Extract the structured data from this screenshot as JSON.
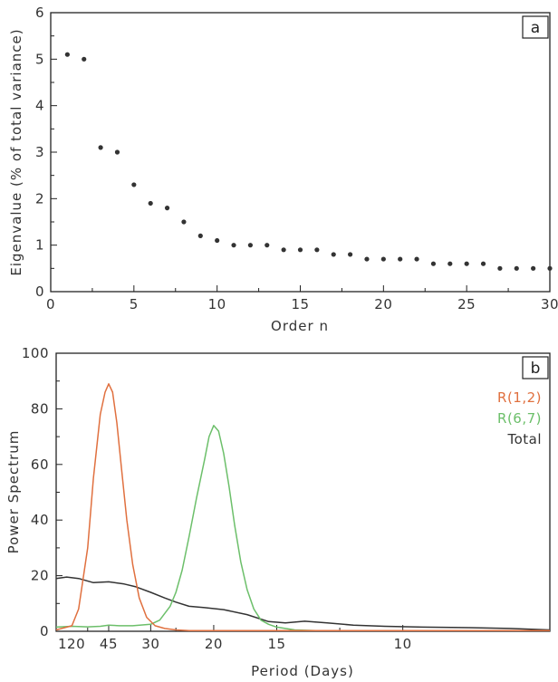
{
  "chart_data": [
    {
      "type": "scatter",
      "panel_label": "a",
      "xlabel": "Order n",
      "ylabel": "Eigenvalue (% of total variance)",
      "xlim": [
        0,
        30
      ],
      "ylim": [
        0,
        6
      ],
      "xticks": [
        0,
        5,
        10,
        15,
        20,
        25,
        30
      ],
      "yticks": [
        0,
        1,
        2,
        3,
        4,
        5,
        6
      ],
      "grid": false,
      "color": "#333333",
      "x": [
        1,
        2,
        3,
        4,
        5,
        6,
        7,
        8,
        9,
        10,
        11,
        12,
        13,
        14,
        15,
        16,
        17,
        18,
        19,
        20,
        21,
        22,
        23,
        24,
        25,
        26,
        27,
        28,
        29,
        30
      ],
      "y": [
        5.1,
        5.0,
        3.1,
        3.0,
        2.3,
        1.9,
        1.8,
        1.5,
        1.2,
        1.1,
        1.0,
        1.0,
        1.0,
        0.9,
        0.9,
        0.9,
        0.8,
        0.8,
        0.7,
        0.7,
        0.7,
        0.7,
        0.6,
        0.6,
        0.6,
        0.6,
        0.5,
        0.5,
        0.5,
        0.5
      ]
    },
    {
      "type": "line",
      "panel_label": "b",
      "xlabel": "Period (Days)",
      "ylabel": "Power Spectrum",
      "x_scale": "reciprocal",
      "xlim": [
        120,
        7.2
      ],
      "ylim": [
        0,
        100
      ],
      "xtick_labels": [
        "120",
        "45",
        "30",
        "20",
        "15",
        "10"
      ],
      "xtick_values": [
        120,
        45,
        30,
        20,
        15,
        10
      ],
      "yticks": [
        0,
        20,
        40,
        60,
        80,
        100
      ],
      "grid": false,
      "legend_position": "top-right",
      "series": [
        {
          "name": "R(1,2)",
          "color": "#e0703f",
          "x": [
            120,
            80,
            70,
            60,
            55,
            50,
            47,
            45,
            43,
            41,
            39,
            37,
            35,
            33,
            31,
            29,
            27,
            25,
            23,
            21,
            20,
            18,
            15,
            10,
            7.2
          ],
          "y": [
            0.5,
            2,
            8,
            30,
            55,
            78,
            86,
            89,
            86,
            75,
            58,
            40,
            24,
            12,
            5,
            2,
            1,
            0.5,
            0,
            0,
            0,
            0,
            0,
            0,
            0
          ]
        },
        {
          "name": "R(6,7)",
          "color": "#6cbf6a",
          "x": [
            120,
            80,
            60,
            50,
            45,
            40,
            35,
            30,
            28,
            26,
            25,
            24,
            23,
            22,
            21,
            20.5,
            20,
            19.5,
            19,
            18.5,
            18,
            17.5,
            17,
            16.5,
            16,
            15.5,
            15,
            14,
            13,
            10,
            7.2
          ],
          "y": [
            1.5,
            1.8,
            1.6,
            1.8,
            2.2,
            2,
            2,
            2.5,
            4,
            9,
            14,
            22,
            34,
            48,
            62,
            70,
            74,
            72,
            64,
            52,
            38,
            25,
            15,
            8,
            4,
            2.5,
            1.5,
            0.5,
            0,
            0,
            0
          ]
        },
        {
          "name": "Total",
          "color": "#333333",
          "x": [
            120,
            90,
            70,
            55,
            45,
            38,
            34,
            30,
            27,
            25,
            23,
            21,
            19,
            17,
            15.5,
            14.5,
            13.5,
            12.5,
            11.5,
            10.5,
            9.5,
            8.5,
            7.8,
            7.2
          ],
          "y": [
            19,
            19.5,
            19,
            17.5,
            17.8,
            17,
            16,
            14,
            12,
            10.5,
            9,
            8.5,
            7.8,
            6,
            3.5,
            3,
            3.6,
            3,
            2.2,
            1.8,
            1.5,
            1.3,
            1,
            0.5
          ]
        }
      ]
    }
  ]
}
